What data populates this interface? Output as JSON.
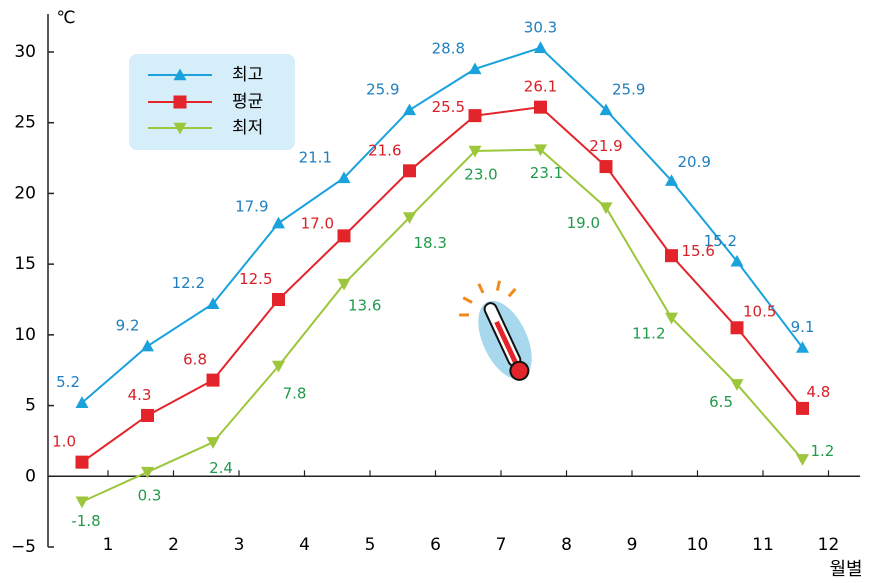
{
  "chart_data": {
    "type": "line",
    "y_axis_label": "℃",
    "x_axis_label": "월별",
    "categories": [
      "1",
      "2",
      "3",
      "4",
      "5",
      "6",
      "7",
      "8",
      "9",
      "10",
      "11",
      "12"
    ],
    "series": [
      {
        "name": "최고",
        "color": "#1ba2dc",
        "label_color": "#1f7fbf",
        "marker": "triangle-up",
        "values": [
          5.2,
          9.2,
          12.2,
          17.9,
          21.1,
          25.9,
          28.8,
          30.3,
          25.9,
          20.9,
          15.2,
          9.1
        ],
        "value_labels": [
          "5.2",
          "9.2",
          "12.2",
          "17.9",
          "21.1",
          "25.9",
          "28.8",
          "30.3",
          "25.9",
          "20.9",
          "15.2",
          "9.1"
        ]
      },
      {
        "name": "평균",
        "color": "#e3242b",
        "label_color": "#d91f26",
        "marker": "square",
        "values": [
          1.0,
          4.3,
          6.8,
          12.5,
          17.0,
          21.6,
          25.5,
          26.1,
          21.9,
          15.6,
          10.5,
          4.8
        ],
        "value_labels": [
          "1.0",
          "4.3",
          "6.8",
          "12.5",
          "17.0",
          "21.6",
          "25.5",
          "26.1",
          "21.9",
          "15.6",
          "10.5",
          "4.8"
        ]
      },
      {
        "name": "최저",
        "color": "#9cc63b",
        "label_color": "#229a4b",
        "marker": "triangle-down",
        "values": [
          -1.8,
          0.3,
          2.4,
          7.8,
          13.6,
          18.3,
          23.0,
          23.1,
          19.0,
          11.2,
          6.5,
          1.2
        ],
        "value_labels": [
          "-1.8",
          "0.3",
          "2.4",
          "7.8",
          "13.6",
          "18.3",
          "23.0",
          "23.1",
          "19.0",
          "11.2",
          "6.5",
          "1.2"
        ]
      }
    ],
    "ylim": [
      -5,
      30
    ],
    "yticks": [
      {
        "value": -5,
        "label": "−5"
      },
      0,
      5,
      10,
      15,
      20,
      25,
      30
    ],
    "legend": "upper left"
  }
}
